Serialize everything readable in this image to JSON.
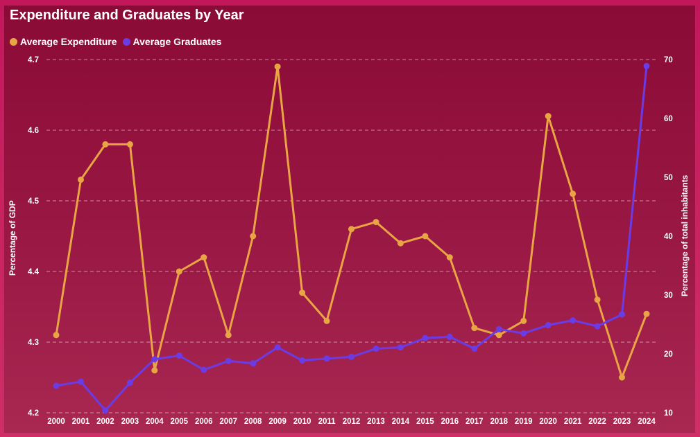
{
  "chart_data": {
    "type": "line",
    "title": "Expenditure and Graduates by Year",
    "x": [
      2000,
      2001,
      2002,
      2003,
      2004,
      2005,
      2006,
      2007,
      2008,
      2009,
      2010,
      2011,
      2012,
      2013,
      2014,
      2015,
      2016,
      2017,
      2018,
      2019,
      2020,
      2021,
      2022,
      2023,
      2024
    ],
    "series": [
      {
        "name": "Average Expenditure",
        "axis": "left",
        "color": "#E9A444",
        "values": [
          4.31,
          4.53,
          4.58,
          4.58,
          4.26,
          4.4,
          4.42,
          4.31,
          4.45,
          4.69,
          4.37,
          4.33,
          4.46,
          4.47,
          4.44,
          4.45,
          4.42,
          4.32,
          4.31,
          4.33,
          4.62,
          4.51,
          4.36,
          4.25,
          4.34
        ]
      },
      {
        "name": "Average Graduates",
        "axis": "right",
        "color": "#6B3CE6",
        "values": [
          14.6,
          15.3,
          10.4,
          15.1,
          19.1,
          19.7,
          17.3,
          18.8,
          18.4,
          21.1,
          18.9,
          19.2,
          19.5,
          20.9,
          21.1,
          22.7,
          22.9,
          20.9,
          24.2,
          23.5,
          24.9,
          25.7,
          24.7,
          26.7,
          68.9
        ]
      }
    ],
    "ylabel": "Percentage of GDP",
    "y2label": "Percentage of total inhabitants",
    "ylim": [
      4.2,
      4.7
    ],
    "y2lim": [
      10,
      70
    ],
    "y_ticks": [
      4.7,
      4.6,
      4.5,
      4.4,
      4.3,
      4.2
    ],
    "y2_ticks": [
      70,
      60,
      50,
      40,
      30,
      20,
      10
    ],
    "grid": true,
    "legend": "top-left"
  },
  "colors": {
    "frame": "#C2185B",
    "panel_top": "#8A0B36",
    "panel_bottom": "#A82852",
    "text": "#FFFFFF"
  }
}
